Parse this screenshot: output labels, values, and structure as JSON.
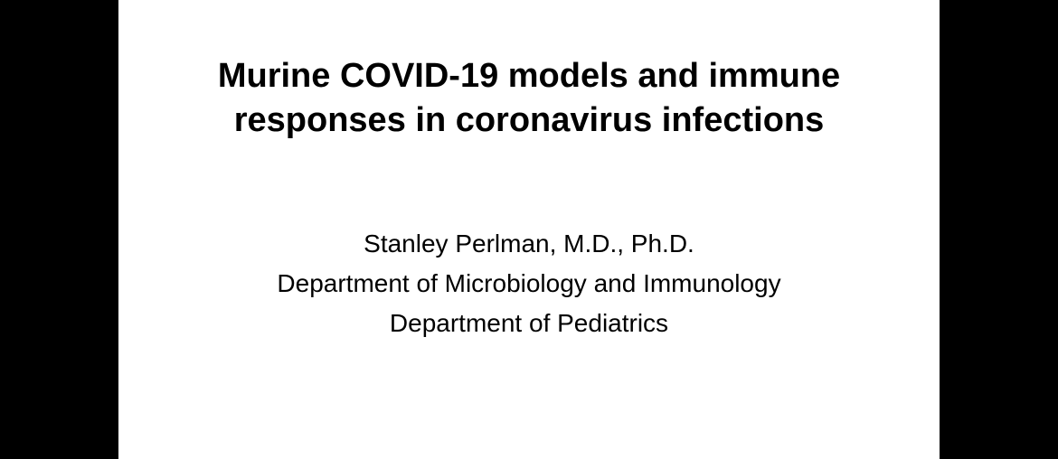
{
  "slide": {
    "title_line1": "Murine COVID-19  models and immune",
    "title_line2": "responses in coronavirus infections",
    "author_name": "Stanley Perlman, M.D., Ph.D.",
    "dept1": "Department of Microbiology and Immunology",
    "dept2": "Department of Pediatrics",
    "colors": {
      "background": "#000000",
      "slide_bg": "#ffffff",
      "text": "#000000"
    },
    "typography": {
      "title_fontsize": 38,
      "title_weight": "bold",
      "body_fontsize": 28,
      "font_family": "Arial"
    },
    "layout": {
      "slide_width": 908,
      "slide_height": 508,
      "outer_width": 1170,
      "outer_height": 508
    }
  }
}
